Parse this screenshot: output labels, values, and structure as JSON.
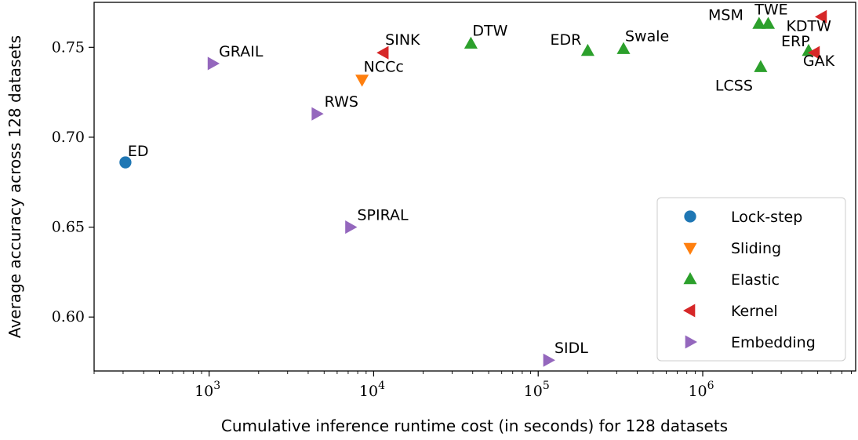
{
  "chart_data": {
    "type": "scatter",
    "xlabel": "Cumulative inference runtime cost (in seconds) for 128 datasets",
    "ylabel": "Average accuracy across 128 datasets",
    "x_scale": "log",
    "xlim": [
      200,
      8500000
    ],
    "ylim": [
      0.57,
      0.775
    ],
    "x_ticks": [
      {
        "value": 1000,
        "base": "10",
        "exp": "3"
      },
      {
        "value": 10000,
        "base": "10",
        "exp": "4"
      },
      {
        "value": 100000,
        "base": "10",
        "exp": "5"
      },
      {
        "value": 1000000,
        "base": "10",
        "exp": "6"
      }
    ],
    "y_ticks": [
      {
        "value": 0.6,
        "label": "0.60"
      },
      {
        "value": 0.65,
        "label": "0.65"
      },
      {
        "value": 0.7,
        "label": "0.70"
      },
      {
        "value": 0.75,
        "label": "0.75"
      }
    ],
    "grid": false,
    "legend_position": "lower-right",
    "series": [
      {
        "name": "Lock-step",
        "marker": "circle",
        "color": "#1f77b4",
        "points": [
          {
            "x": 310,
            "y": 0.686,
            "label": "ED"
          }
        ]
      },
      {
        "name": "Sliding",
        "marker": "triangle-down",
        "color": "#ff7f0e",
        "points": [
          {
            "x": 8500,
            "y": 0.732,
            "label": "NCCc"
          }
        ]
      },
      {
        "name": "Elastic",
        "marker": "triangle-up",
        "color": "#2ca02c",
        "points": [
          {
            "x": 39000,
            "y": 0.752,
            "label": "DTW"
          },
          {
            "x": 200000,
            "y": 0.748,
            "label": "EDR"
          },
          {
            "x": 330000,
            "y": 0.749,
            "label": "Swale"
          },
          {
            "x": 2200000,
            "y": 0.763,
            "label": "MSM"
          },
          {
            "x": 2500000,
            "y": 0.763,
            "label": "TWE"
          },
          {
            "x": 2250000,
            "y": 0.739,
            "label": "LCSS"
          },
          {
            "x": 4400000,
            "y": 0.748,
            "label": "ERP"
          }
        ]
      },
      {
        "name": "Kernel",
        "marker": "triangle-left",
        "color": "#d62728",
        "points": [
          {
            "x": 11500,
            "y": 0.747,
            "label": "SINK"
          },
          {
            "x": 5300000,
            "y": 0.767,
            "label": "KDTW"
          },
          {
            "x": 4800000,
            "y": 0.747,
            "label": "GAK"
          }
        ]
      },
      {
        "name": "Embedding",
        "marker": "triangle-right",
        "color": "#9467bd",
        "points": [
          {
            "x": 1050,
            "y": 0.741,
            "label": "GRAIL"
          },
          {
            "x": 4500,
            "y": 0.713,
            "label": "RWS"
          },
          {
            "x": 7200,
            "y": 0.65,
            "label": "SPIRAL"
          },
          {
            "x": 115000,
            "y": 0.576,
            "label": "SIDL"
          }
        ]
      }
    ]
  }
}
